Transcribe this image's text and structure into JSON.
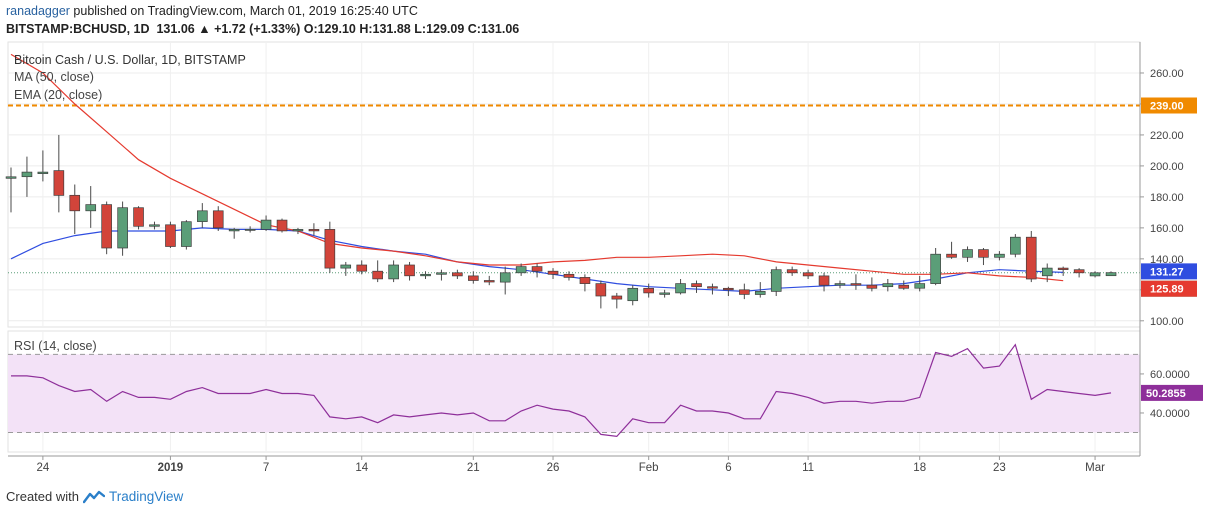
{
  "header": {
    "user": "ranadagger",
    "rest": " published on TradingView.com, March 01, 2019 16:25:40 UTC",
    "symbol": "BITSTAMP:BCHUSD, 1D",
    "last": "131.06",
    "change": "+1.72 (+1.33%)",
    "o_label": "O:",
    "o": "129.10",
    "h_label": "H:",
    "h": "131.88",
    "l_label": "L:",
    "l": "129.09",
    "c_label": "C:",
    "c": "131.06"
  },
  "footer": {
    "created": "Created with",
    "brand": "TradingView"
  },
  "colors": {
    "up": "#5b9e78",
    "down": "#d2443a",
    "ma": "#2f4de0",
    "ema": "#e53a2f",
    "rsi": "#8e2f9a",
    "rsi_fill": "#f3e2f7",
    "level": "#f08a00"
  },
  "chart_data": [
    {
      "type": "candlestick",
      "title": "Bitcoin Cash / U.S. Dollar, 1D, BITSTAMP",
      "legend": [
        "MA (50, close)",
        "EMA (20, close)"
      ],
      "ylim": [
        96,
        280
      ],
      "yticks": [
        100,
        120,
        140,
        160,
        180,
        200,
        220,
        240,
        260
      ],
      "ytick_labels": [
        "100.00",
        "120.00",
        "140.00",
        "160.00",
        "180.00",
        "200.00",
        "220.00",
        "240.00",
        "260.00"
      ],
      "xticks": [
        {
          "i": 2,
          "label": "24"
        },
        {
          "i": 10,
          "label": "2019"
        },
        {
          "i": 16,
          "label": "7"
        },
        {
          "i": 22,
          "label": "14"
        },
        {
          "i": 29,
          "label": "21"
        },
        {
          "i": 34,
          "label": "26"
        },
        {
          "i": 40,
          "label": "Feb"
        },
        {
          "i": 45,
          "label": "6"
        },
        {
          "i": 50,
          "label": "11"
        },
        {
          "i": 57,
          "label": "18"
        },
        {
          "i": 62,
          "label": "23"
        },
        {
          "i": 68,
          "label": "Mar"
        }
      ],
      "horizontal_level": {
        "value": 239,
        "label": "239.00"
      },
      "price_labels": [
        {
          "value": 131.27,
          "label": "131.27",
          "color": "#2f4de0"
        },
        {
          "value": 131.06,
          "label": "131.06",
          "color": "#5b9e78"
        },
        {
          "value": 125.89,
          "label": "125.89",
          "color": "#e53a2f"
        }
      ],
      "ohlc": [
        [
          192,
          199,
          170,
          193
        ],
        [
          193,
          206,
          180,
          196
        ],
        [
          195,
          210,
          190,
          196
        ],
        [
          197,
          220,
          170,
          181
        ],
        [
          181,
          188,
          156,
          171
        ],
        [
          171,
          187,
          160,
          175
        ],
        [
          175,
          177,
          143,
          147
        ],
        [
          147,
          177,
          142,
          173
        ],
        [
          173,
          174,
          159,
          161
        ],
        [
          161,
          164,
          159,
          162
        ],
        [
          162,
          164,
          147,
          148
        ],
        [
          148,
          165,
          146,
          164
        ],
        [
          164,
          176,
          160,
          171
        ],
        [
          171,
          174,
          158,
          160
        ],
        [
          158,
          160,
          153,
          159
        ],
        [
          159,
          161,
          157,
          159
        ],
        [
          159,
          168,
          158,
          165
        ],
        [
          165,
          166,
          157,
          158
        ],
        [
          158,
          160,
          156,
          159
        ],
        [
          159,
          163,
          155,
          158
        ],
        [
          159,
          164,
          131,
          134
        ],
        [
          134,
          138,
          129,
          136
        ],
        [
          136,
          139,
          130,
          132
        ],
        [
          132,
          139,
          125,
          127
        ],
        [
          127,
          139,
          125,
          136
        ],
        [
          136,
          138,
          126,
          129
        ],
        [
          129,
          132,
          127,
          130
        ],
        [
          130,
          133,
          126,
          131
        ],
        [
          131,
          133,
          127,
          129
        ],
        [
          129,
          132,
          124,
          126
        ],
        [
          126,
          129,
          123,
          125
        ],
        [
          125,
          135,
          117,
          131
        ],
        [
          131,
          137,
          129,
          135
        ],
        [
          135,
          137,
          128,
          132
        ],
        [
          132,
          134,
          127,
          130
        ],
        [
          130,
          132,
          126,
          128
        ],
        [
          128,
          130,
          119,
          124
        ],
        [
          124,
          126,
          108,
          116
        ],
        [
          116,
          118,
          108,
          114
        ],
        [
          113,
          123,
          110,
          121
        ],
        [
          121,
          124,
          115,
          118
        ],
        [
          117,
          120,
          115,
          118
        ],
        [
          118,
          127,
          117,
          124
        ],
        [
          124,
          126,
          118,
          122
        ],
        [
          122,
          124,
          117,
          121
        ],
        [
          121,
          122,
          116,
          120
        ],
        [
          120,
          124,
          114,
          117
        ],
        [
          117,
          125,
          115,
          119
        ],
        [
          119,
          135,
          116,
          133
        ],
        [
          133,
          135,
          129,
          131
        ],
        [
          131,
          133,
          127,
          129
        ],
        [
          129,
          131,
          119,
          123
        ],
        [
          123,
          126,
          121,
          124
        ],
        [
          124,
          130,
          120,
          123
        ],
        [
          123,
          128,
          119,
          121
        ],
        [
          122,
          127,
          119,
          124
        ],
        [
          123,
          126,
          120,
          121
        ],
        [
          121,
          129,
          119,
          124
        ],
        [
          124,
          147,
          123,
          143
        ],
        [
          143,
          151,
          140,
          141
        ],
        [
          141,
          148,
          138,
          146
        ],
        [
          146,
          147,
          136,
          141
        ],
        [
          141,
          145,
          139,
          143
        ],
        [
          143,
          156,
          141,
          154
        ],
        [
          154,
          158,
          125,
          127
        ],
        [
          129,
          137,
          125,
          134
        ],
        [
          134,
          135,
          129,
          133
        ],
        [
          133,
          134,
          128,
          131
        ],
        [
          129,
          132,
          128,
          131
        ],
        [
          129.1,
          131.88,
          129.09,
          131.06
        ]
      ],
      "ma": [
        [
          0,
          140
        ],
        [
          2,
          150
        ],
        [
          4,
          155
        ],
        [
          6,
          158
        ],
        [
          8,
          158
        ],
        [
          10,
          158
        ],
        [
          12,
          160
        ],
        [
          14,
          159
        ],
        [
          16,
          159
        ],
        [
          18,
          158
        ],
        [
          20,
          152
        ],
        [
          22,
          148
        ],
        [
          24,
          145
        ],
        [
          26,
          143
        ],
        [
          28,
          138
        ],
        [
          30,
          135
        ],
        [
          32,
          133
        ],
        [
          34,
          130
        ],
        [
          36,
          127
        ],
        [
          38,
          124
        ],
        [
          40,
          122
        ],
        [
          42,
          121
        ],
        [
          44,
          120
        ],
        [
          46,
          119
        ],
        [
          48,
          121
        ],
        [
          50,
          122
        ],
        [
          52,
          123
        ],
        [
          54,
          123
        ],
        [
          56,
          124
        ],
        [
          58,
          127
        ],
        [
          60,
          131
        ],
        [
          62,
          133
        ],
        [
          64,
          132
        ],
        [
          66,
          131.27
        ]
      ],
      "ema": [
        [
          0,
          272
        ],
        [
          2,
          260
        ],
        [
          4,
          240
        ],
        [
          6,
          222
        ],
        [
          8,
          204
        ],
        [
          10,
          192
        ],
        [
          12,
          182
        ],
        [
          14,
          172
        ],
        [
          16,
          162
        ],
        [
          18,
          158
        ],
        [
          20,
          150
        ],
        [
          22,
          147
        ],
        [
          24,
          145
        ],
        [
          26,
          142
        ],
        [
          28,
          138
        ],
        [
          30,
          136
        ],
        [
          32,
          136
        ],
        [
          34,
          138
        ],
        [
          36,
          139
        ],
        [
          38,
          141
        ],
        [
          40,
          141
        ],
        [
          42,
          142
        ],
        [
          44,
          143
        ],
        [
          46,
          142
        ],
        [
          48,
          138
        ],
        [
          50,
          136
        ],
        [
          52,
          134
        ],
        [
          54,
          132
        ],
        [
          56,
          130
        ],
        [
          58,
          130
        ],
        [
          60,
          131
        ],
        [
          62,
          129
        ],
        [
          64,
          128
        ],
        [
          66,
          125.89
        ]
      ]
    },
    {
      "type": "line",
      "title": "RSI (14, close)",
      "ylim": [
        20,
        82
      ],
      "yticks": [
        40,
        60
      ],
      "ytick_labels": [
        "40.0000",
        "60.0000"
      ],
      "bands": [
        30,
        70
      ],
      "last_label": {
        "value": 50.2855,
        "label": "50.2855"
      },
      "values": [
        59,
        59,
        58,
        54,
        51,
        52,
        46,
        51,
        48,
        48,
        47,
        51,
        53,
        50,
        50,
        50,
        52,
        50,
        50,
        49,
        38,
        37,
        38,
        35,
        39,
        38,
        39,
        40,
        39,
        40,
        36,
        36,
        41,
        44,
        42,
        41,
        38,
        29,
        28,
        37,
        35,
        35,
        44,
        41,
        41,
        40,
        37,
        37,
        51,
        50,
        48,
        45,
        46,
        46,
        45,
        46,
        46,
        48,
        71,
        69,
        73,
        63,
        64,
        75,
        47,
        52,
        51,
        50,
        49,
        50.2855
      ]
    }
  ]
}
